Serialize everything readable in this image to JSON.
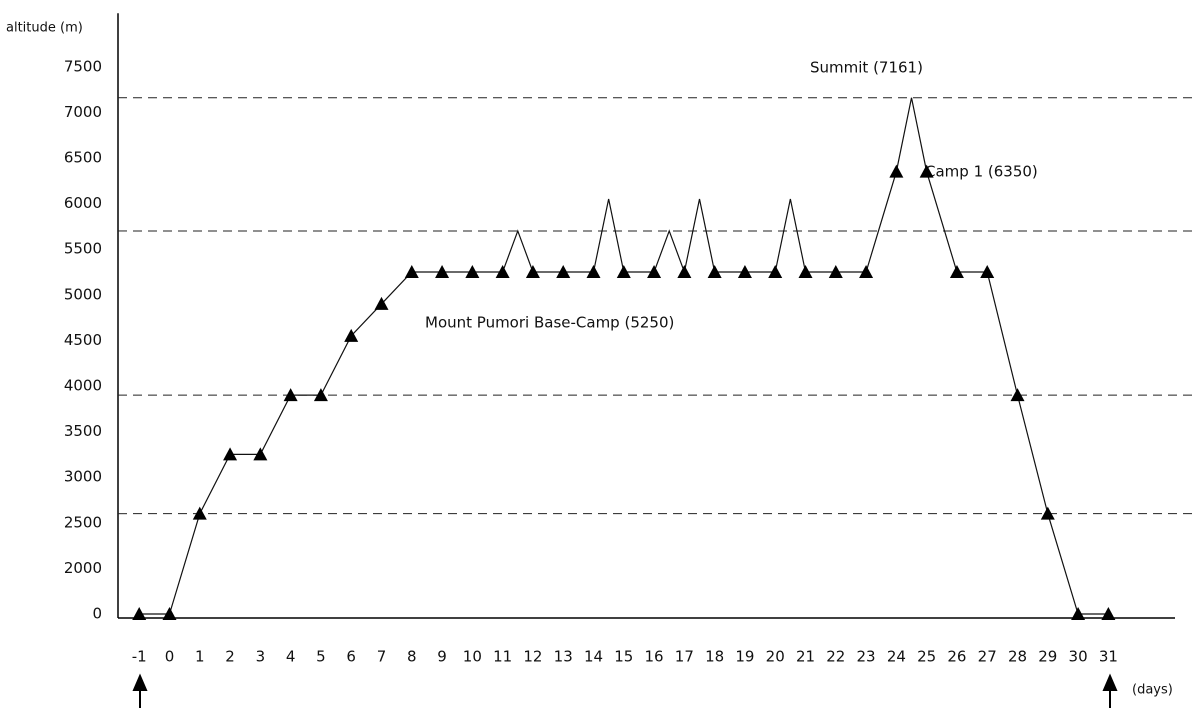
{
  "chart_data": {
    "type": "line",
    "y_label": "altitude (m)",
    "x_label": "(days)",
    "xlim": [
      -1.7,
      33.2
    ],
    "xticks": [
      -1,
      0,
      1,
      2,
      3,
      4,
      5,
      6,
      7,
      8,
      9,
      10,
      11,
      12,
      13,
      14,
      15,
      16,
      17,
      18,
      19,
      20,
      21,
      22,
      23,
      24,
      25,
      26,
      27,
      28,
      29,
      30,
      31
    ],
    "ylim": [
      0,
      8000
    ],
    "yticks": [
      0,
      2000,
      2500,
      3000,
      3500,
      4000,
      4500,
      5000,
      5500,
      6000,
      6500,
      7000,
      7500
    ],
    "reference_lines": [
      7161,
      5700,
      3900,
      2600
    ],
    "series": [
      {
        "color": "#111111",
        "x": [
          -1,
          0,
          1,
          2,
          3,
          4,
          5,
          6,
          7,
          8,
          9,
          10,
          11,
          11.5,
          12,
          13,
          14,
          14.5,
          15,
          16,
          16.5,
          17,
          17.5,
          18,
          19,
          20,
          20.5,
          21,
          22,
          23,
          24,
          24.5,
          25,
          26,
          27,
          28,
          29,
          30,
          31
        ],
        "values": [
          0,
          0,
          2600,
          3250,
          3250,
          3900,
          3900,
          4550,
          4900,
          5250,
          5250,
          5250,
          5250,
          5700,
          5250,
          5250,
          5250,
          6050,
          5250,
          5250,
          5700,
          5250,
          6050,
          5250,
          5250,
          5250,
          6050,
          5250,
          5250,
          5250,
          6350,
          7161,
          6350,
          5250,
          5250,
          3900,
          2600,
          0,
          0
        ]
      },
      {
        "color": "#000000",
        "marker": "triangle",
        "x": [
          -1,
          0,
          1,
          2,
          3,
          4,
          5,
          6,
          7,
          8,
          9,
          10,
          11,
          12,
          13,
          14,
          15,
          16,
          17,
          18,
          19,
          20,
          21,
          22,
          23,
          24,
          25,
          26,
          27,
          28,
          29,
          30,
          31
        ],
        "values": [
          0,
          0,
          2600,
          3250,
          3250,
          3900,
          3900,
          4550,
          4900,
          5250,
          5250,
          5250,
          5250,
          5250,
          5250,
          5250,
          5250,
          5250,
          5250,
          5250,
          5250,
          5250,
          5250,
          5250,
          5250,
          6350,
          6350,
          5250,
          5250,
          3900,
          2600,
          0,
          0
        ]
      }
    ],
    "annotations": [
      {
        "text": "Summit (7161)"
      },
      {
        "text": "Camp 1 (6350)"
      },
      {
        "text": "Mount Pumori Base-Camp (5250)"
      }
    ]
  }
}
